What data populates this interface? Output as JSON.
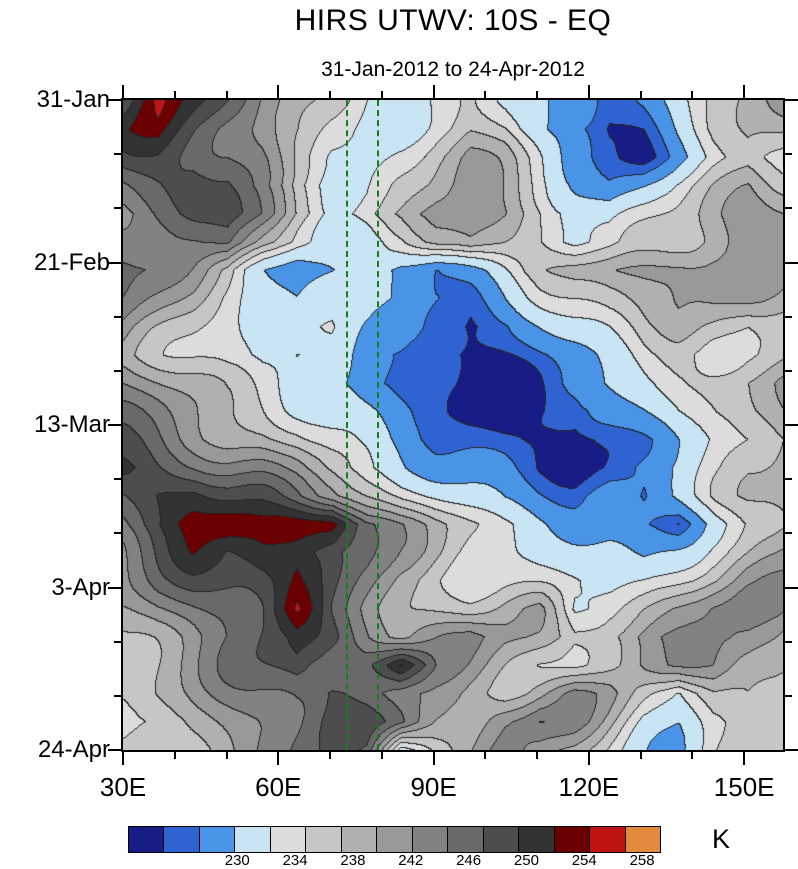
{
  "title": "HIRS UTWV: 10S - EQ",
  "subtitle": "31-Jan-2012 to 24-Apr-2012",
  "colorbar": {
    "unit_label": "K",
    "tick_labels": [
      "230",
      "234",
      "238",
      "242",
      "246",
      "250",
      "254",
      "258"
    ],
    "colors": [
      "#181c86",
      "#2f63d2",
      "#4a94e8",
      "#c9e5f4",
      "#dcdcdc",
      "#c6c6c6",
      "#b0b0b0",
      "#999999",
      "#828282",
      "#696969",
      "#4d4d4d",
      "#333333",
      "#6b0000",
      "#c01414",
      "#e28a3c"
    ],
    "levels": [
      230,
      232,
      235,
      238,
      240,
      242,
      244,
      246,
      248,
      250,
      252,
      254,
      256,
      258
    ]
  },
  "chart_data": {
    "type": "heatmap",
    "title": "HIRS UTWV: 10S - EQ",
    "subtitle": "31-Jan-2012 to 24-Apr-2012",
    "xlabel": "",
    "ylabel": "",
    "x_axis": {
      "range": [
        30,
        157.5
      ],
      "tick_values": [
        30,
        60,
        90,
        120,
        150
      ],
      "tick_labels": [
        "30E",
        "60E",
        "90E",
        "120E",
        "150E"
      ],
      "minor_step_deg": 10
    },
    "y_axis": {
      "top_label": "31-Jan",
      "bottom_label": "24-Apr",
      "tick_labels": [
        "31-Jan",
        "21-Feb",
        "13-Mar",
        "3-Apr",
        "24-Apr"
      ],
      "tick_positions": [
        0,
        0.25,
        0.5,
        0.75,
        1
      ],
      "minor_fraction_step": 0.0833333,
      "span_days": 84
    },
    "reference_lines": {
      "lon_values": [
        73,
        79
      ],
      "color": "#158015",
      "style": "dashed"
    },
    "units": "K",
    "grid": {
      "lon_start": 30,
      "lon_end": 157.5,
      "rows": 24,
      "cols": 20,
      "values": [
        [
          249,
          256,
          252,
          249,
          246,
          244,
          241,
          237,
          235,
          239,
          241,
          239,
          236,
          233,
          230,
          233,
          237,
          241,
          243,
          244
        ],
        [
          252,
          254,
          251,
          248,
          246,
          243,
          239,
          236,
          237,
          240,
          242,
          240,
          235,
          231,
          229,
          231,
          236,
          240,
          242,
          242
        ],
        [
          251,
          252,
          251,
          249,
          246,
          241,
          237,
          236,
          239,
          242,
          244,
          242,
          238,
          233,
          231,
          230,
          234,
          238,
          241,
          240
        ],
        [
          248,
          250,
          252,
          250,
          245,
          240,
          237,
          238,
          241,
          243,
          245,
          243,
          240,
          236,
          233,
          235,
          238,
          241,
          244,
          242
        ],
        [
          246,
          248,
          250,
          251,
          247,
          242,
          239,
          240,
          242,
          245,
          246,
          244,
          241,
          238,
          236,
          238,
          240,
          243,
          246,
          245
        ],
        [
          248,
          246,
          247,
          249,
          244,
          240,
          237,
          236,
          238,
          242,
          244,
          242,
          240,
          237,
          238,
          240,
          242,
          244,
          246,
          246
        ],
        [
          249,
          247,
          245,
          242,
          236,
          232,
          234,
          236,
          233,
          232,
          235,
          238,
          241,
          243,
          244,
          245,
          246,
          246,
          245,
          244
        ],
        [
          247,
          245,
          243,
          240,
          237,
          234,
          236,
          238,
          235,
          233,
          232,
          235,
          238,
          240,
          242,
          243,
          244,
          244,
          243,
          242
        ],
        [
          245,
          243,
          241,
          239,
          237,
          236,
          238,
          236,
          234,
          231,
          229,
          231,
          234,
          237,
          239,
          241,
          242,
          241,
          240,
          241
        ],
        [
          244,
          242,
          240,
          238,
          237,
          238,
          237,
          234,
          232,
          229,
          228,
          230,
          232,
          234,
          237,
          239,
          240,
          239,
          241,
          242
        ],
        [
          246,
          244,
          242,
          240,
          239,
          238,
          236,
          233,
          231,
          230,
          229,
          229,
          231,
          233,
          235,
          237,
          239,
          241,
          243,
          244
        ],
        [
          248,
          246,
          244,
          242,
          241,
          239,
          237,
          235,
          233,
          231,
          229,
          228,
          230,
          229,
          232,
          235,
          238,
          240,
          242,
          243
        ],
        [
          250,
          248,
          246,
          244,
          243,
          241,
          238,
          236,
          234,
          232,
          231,
          230,
          229,
          228,
          230,
          233,
          236,
          238,
          240,
          242
        ],
        [
          252,
          250,
          249,
          247,
          246,
          244,
          241,
          238,
          236,
          234,
          233,
          232,
          230,
          229,
          231,
          234,
          236,
          238,
          241,
          243
        ],
        [
          250,
          252,
          253,
          251,
          250,
          248,
          246,
          243,
          240,
          238,
          236,
          234,
          233,
          232,
          234,
          231,
          235,
          239,
          242,
          244
        ],
        [
          249,
          252,
          255,
          256,
          255,
          256,
          257,
          249,
          245,
          242,
          240,
          238,
          236,
          234,
          233,
          231,
          230,
          237,
          241,
          243
        ],
        [
          247,
          250,
          253,
          252,
          254,
          253,
          251,
          248,
          244,
          242,
          240,
          239,
          237,
          236,
          235,
          234,
          237,
          240,
          242,
          244
        ],
        [
          245,
          248,
          250,
          251,
          252,
          254,
          250,
          247,
          243,
          241,
          240,
          240,
          239,
          238,
          237,
          238,
          240,
          242,
          244,
          245
        ],
        [
          243,
          246,
          248,
          250,
          251,
          256,
          249,
          246,
          243,
          242,
          241,
          242,
          243,
          237,
          240,
          242,
          244,
          246,
          247,
          246
        ],
        [
          242,
          244,
          246,
          248,
          250,
          252,
          250,
          247,
          244,
          245,
          246,
          244,
          243,
          241,
          243,
          245,
          246,
          247,
          246,
          244
        ],
        [
          241,
          243,
          245,
          247,
          249,
          251,
          248,
          250,
          255,
          247,
          245,
          243,
          241,
          240,
          242,
          244,
          245,
          246,
          244,
          242
        ],
        [
          240,
          242,
          244,
          246,
          248,
          250,
          251,
          249,
          247,
          245,
          243,
          242,
          244,
          246,
          244,
          240,
          237,
          242,
          243,
          241
        ],
        [
          238,
          240,
          243,
          245,
          247,
          249,
          251,
          250,
          248,
          244,
          242,
          246,
          248,
          246,
          242,
          238,
          236,
          240,
          242,
          240
        ],
        [
          240,
          241,
          242,
          244,
          246,
          248,
          250,
          248,
          237,
          242,
          244,
          247,
          245,
          243,
          240,
          237,
          235,
          239,
          241,
          240
        ]
      ]
    }
  }
}
